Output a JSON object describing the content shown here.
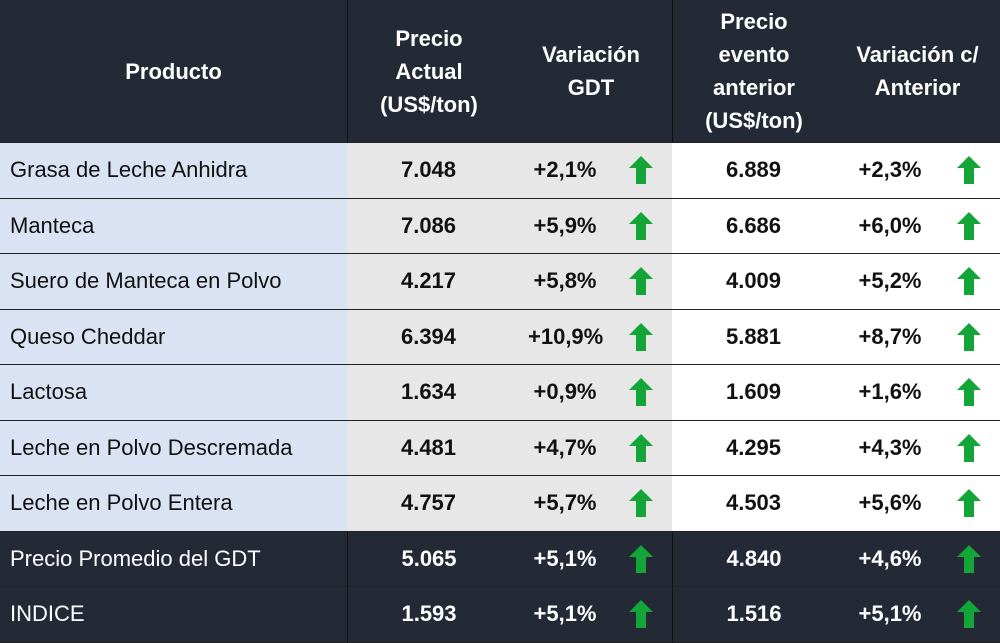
{
  "table": {
    "header": [
      [
        "Producto"
      ],
      [
        "Precio",
        "Actual",
        "(US$/ton)"
      ],
      [
        "Variación",
        "GDT"
      ],
      [
        "Precio",
        "evento",
        "anterior",
        "(US$/ton)"
      ],
      [
        "Variación c/",
        "Anterior"
      ]
    ],
    "rows": [
      [
        "Grasa de Leche Anhidra",
        "7.048",
        "+2,1%",
        "6.889",
        "+2,3%"
      ],
      [
        "Manteca",
        "7.086",
        "+5,9%",
        "6.686",
        "+6,0%"
      ],
      [
        "Suero de Manteca en Polvo",
        "4.217",
        "+5,8%",
        "4.009",
        "+5,2%"
      ],
      [
        "Queso Cheddar",
        "6.394",
        "+10,9%",
        "5.881",
        "+8,7%"
      ],
      [
        "Lactosa",
        "1.634",
        "+0,9%",
        "1.609",
        "+1,6%"
      ],
      [
        "Leche en Polvo Descremada",
        "4.481",
        "+4,7%",
        "4.295",
        "+4,3%"
      ],
      [
        "Leche en Polvo Entera",
        "4.757",
        "+5,7%",
        "4.503",
        "+5,6%"
      ]
    ],
    "summary_rows": [
      [
        "Precio Promedio del GDT",
        "5.065",
        "+5,1%",
        "4.840",
        "+4,6%"
      ],
      [
        "INDICE",
        "1.593",
        "+5,1%",
        "1.516",
        "+5,1%"
      ]
    ]
  }
}
